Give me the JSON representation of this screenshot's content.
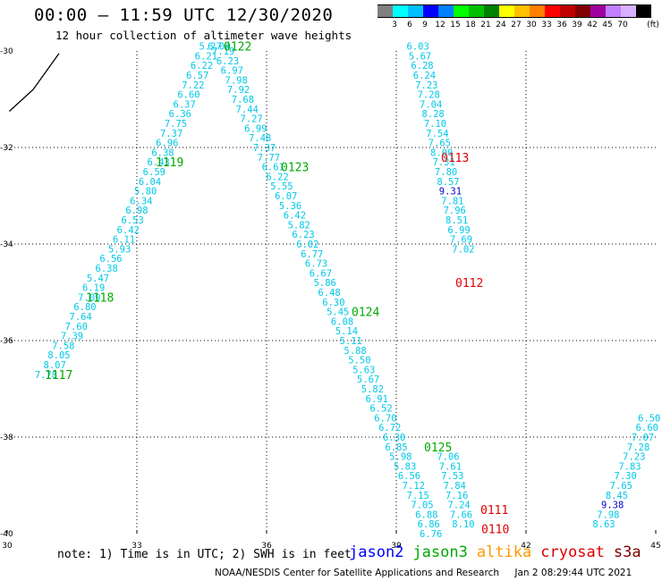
{
  "header": {
    "title": "00:00 – 11:59 UTC 12/30/2020",
    "subtitle": "12 hour collection of altimeter wave heights"
  },
  "colorbar": {
    "unit": "(ft)",
    "colors": [
      "#808080",
      "#00ffff",
      "#00bfff",
      "#0000ff",
      "#0080ff",
      "#00ff00",
      "#00c000",
      "#008000",
      "#ffff00",
      "#ffc000",
      "#ff8000",
      "#ff0000",
      "#c00000",
      "#800000",
      "#a000a0",
      "#c080ff",
      "#d8b0ff",
      "#000000"
    ],
    "labels": [
      "3",
      "6",
      "9",
      "12",
      "15",
      "18",
      "21",
      "24",
      "27",
      "30",
      "33",
      "36",
      "39",
      "42",
      "45",
      "70"
    ]
  },
  "map": {
    "x_ticks": [
      "30",
      "33",
      "36",
      "39",
      "42",
      "45"
    ],
    "y_ticks": [
      "-30",
      "-32",
      "-34",
      "-36",
      "-38",
      "-40"
    ]
  },
  "tracks": [
    {
      "mission": "jason3",
      "color": "#00aa00",
      "label": "1117",
      "label_pos": [
        50,
        -36.7
      ],
      "points": [
        [
          7.78,
          30.9,
          -36.7
        ],
        [
          8.07,
          31.1,
          -36.5
        ],
        [
          8.05,
          31.2,
          -36.3
        ],
        [
          7.58,
          31.3,
          -36.1
        ],
        [
          7.39,
          31.5,
          -35.9
        ],
        [
          7.6,
          31.6,
          -35.7
        ],
        [
          7.64,
          31.7,
          -35.5
        ],
        [
          6.8,
          31.8,
          -35.3
        ],
        [
          7.09,
          31.9,
          -35.1
        ],
        [
          6.19,
          32.0,
          -34.9
        ],
        [
          5.47,
          32.1,
          -34.7
        ],
        [
          6.38,
          32.3,
          -34.5
        ],
        [
          6.56,
          32.4,
          -34.3
        ],
        [
          5.93,
          32.6,
          -34.1
        ],
        [
          6.11,
          32.7,
          -33.9
        ],
        [
          6.42,
          32.8,
          -33.7
        ],
        [
          6.53,
          32.9,
          -33.5
        ],
        [
          6.98,
          33.0,
          -33.3
        ],
        [
          6.34,
          33.1,
          -33.1
        ],
        [
          5.8,
          33.2,
          -32.9
        ],
        [
          6.04,
          33.3,
          -32.7
        ],
        [
          6.59,
          33.4,
          -32.5
        ],
        [
          6.43,
          33.5,
          -32.3
        ],
        [
          6.38,
          33.6,
          -32.1
        ],
        [
          6.96,
          33.7,
          -31.9
        ],
        [
          7.37,
          33.8,
          -31.7
        ],
        [
          7.75,
          33.9,
          -31.5
        ],
        [
          6.36,
          34.0,
          -31.3
        ],
        [
          6.37,
          34.1,
          -31.1
        ],
        [
          6.6,
          34.2,
          -30.9
        ],
        [
          7.22,
          34.3,
          -30.7
        ],
        [
          6.57,
          34.4,
          -30.5
        ],
        [
          6.22,
          34.5,
          -30.3
        ],
        [
          6.21,
          34.6,
          -30.1
        ],
        [
          5.27,
          34.7,
          -29.9
        ],
        [
          5.8,
          34.8,
          -29.7
        ]
      ]
    },
    {
      "mission": "jason3",
      "color": "#00aa00",
      "label": "1118",
      "label_pos": [
        96,
        -35.1
      ],
      "points": []
    },
    {
      "mission": "jason3",
      "color": "#00aa00",
      "label": "1119",
      "label_pos": [
        174,
        -32.3
      ],
      "points": []
    },
    {
      "mission": "jason3",
      "color": "#00aa00",
      "label": "0122",
      "label_pos": [
        250,
        -29.9
      ],
      "points": [
        [
          6.04,
          34.9,
          -29.9
        ],
        [
          7.19,
          35.0,
          -30.0
        ],
        [
          6.23,
          35.1,
          -30.2
        ],
        [
          6.97,
          35.2,
          -30.4
        ],
        [
          7.98,
          35.3,
          -30.6
        ],
        [
          7.92,
          35.35,
          -30.8
        ],
        [
          7.68,
          35.45,
          -31.0
        ],
        [
          7.44,
          35.55,
          -31.2
        ],
        [
          7.27,
          35.65,
          -31.4
        ],
        [
          6.99,
          35.75,
          -31.6
        ],
        [
          7.48,
          35.85,
          -31.8
        ],
        [
          7.37,
          35.95,
          -32.0
        ],
        [
          7.77,
          36.05,
          -32.2
        ],
        [
          6.61,
          36.15,
          -32.4
        ],
        [
          6.22,
          36.25,
          -32.6
        ],
        [
          5.55,
          36.35,
          -32.8
        ],
        [
          6.07,
          36.45,
          -33.0
        ]
      ]
    },
    {
      "mission": "jason3",
      "color": "#00aa00",
      "label": "0123",
      "label_pos": [
        314,
        -32.4
      ],
      "points": [
        [
          5.36,
          36.55,
          -33.2
        ],
        [
          6.42,
          36.65,
          -33.4
        ],
        [
          5.82,
          36.75,
          -33.6
        ],
        [
          6.23,
          36.85,
          -33.8
        ],
        [
          6.02,
          36.95,
          -34.0
        ],
        [
          6.77,
          37.05,
          -34.2
        ],
        [
          6.73,
          37.15,
          -34.4
        ],
        [
          6.67,
          37.25,
          -34.6
        ],
        [
          5.86,
          37.35,
          -34.8
        ],
        [
          6.48,
          37.45,
          -35.0
        ],
        [
          6.3,
          37.55,
          -35.2
        ],
        [
          5.45,
          37.65,
          -35.4
        ],
        [
          6.08,
          37.75,
          -35.6
        ],
        [
          5.14,
          37.85,
          -35.8
        ],
        [
          5.11,
          37.95,
          -36.0
        ]
      ]
    },
    {
      "mission": "jason3",
      "color": "#00aa00",
      "label": "0124",
      "label_pos": [
        393,
        -35.4
      ],
      "points": [
        [
          5.88,
          38.05,
          -36.2
        ],
        [
          5.5,
          38.15,
          -36.4
        ],
        [
          5.63,
          38.25,
          -36.6
        ],
        [
          5.67,
          38.35,
          -36.8
        ],
        [
          5.82,
          38.45,
          -37.0
        ],
        [
          6.91,
          38.55,
          -37.2
        ],
        [
          6.52,
          38.65,
          -37.4
        ],
        [
          6.7,
          38.75,
          -37.6
        ],
        [
          6.72,
          38.85,
          -37.8
        ],
        [
          6.3,
          38.95,
          -38.0
        ],
        [
          6.85,
          39.0,
          -38.2
        ]
      ]
    },
    {
      "mission": "jason3",
      "color": "#00aa00",
      "label": "0125",
      "label_pos": [
        474,
        -38.2
      ],
      "points": [
        [
          5.98,
          39.1,
          -38.4
        ],
        [
          5.83,
          39.2,
          -38.6
        ],
        [
          6.56,
          39.3,
          -38.8
        ],
        [
          7.12,
          39.4,
          -39.0
        ],
        [
          7.15,
          39.5,
          -39.2
        ],
        [
          7.05,
          39.6,
          -39.4
        ],
        [
          6.88,
          39.7,
          -39.6
        ],
        [
          6.86,
          39.75,
          -39.8
        ],
        [
          6.76,
          39.8,
          -40.0
        ]
      ]
    },
    {
      "mission": "cryosat",
      "color": "#dd0000",
      "label": "0113",
      "label_pos": [
        493,
        -32.2
      ],
      "points": [
        [
          6.03,
          39.5,
          -29.9
        ],
        [
          5.67,
          39.55,
          -30.1
        ],
        [
          6.28,
          39.6,
          -30.3
        ],
        [
          6.24,
          39.65,
          -30.5
        ],
        [
          7.23,
          39.7,
          -30.7
        ],
        [
          7.28,
          39.75,
          -30.9
        ],
        [
          7.04,
          39.8,
          -31.1
        ],
        [
          8.28,
          39.85,
          -31.3
        ],
        [
          7.1,
          39.9,
          -31.5
        ],
        [
          7.54,
          39.95,
          -31.7
        ],
        [
          7.65,
          40.0,
          -31.9
        ],
        [
          8.0,
          40.05,
          -32.1
        ],
        [
          7.31,
          40.1,
          -32.3
        ],
        [
          7.8,
          40.15,
          -32.5
        ],
        [
          8.57,
          40.2,
          -32.7
        ],
        [
          9.31,
          40.25,
          -32.9
        ],
        [
          7.81,
          40.3,
          -33.1
        ],
        [
          7.96,
          40.35,
          -33.3
        ],
        [
          8.51,
          40.4,
          -33.5
        ],
        [
          6.99,
          40.45,
          -33.7
        ],
        [
          7.69,
          40.5,
          -33.9
        ],
        [
          7.02,
          40.55,
          -34.1
        ]
      ]
    },
    {
      "mission": "cryosat",
      "color": "#dd0000",
      "label": "0112",
      "label_pos": [
        509,
        -34.8
      ],
      "points": []
    },
    {
      "mission": "cryosat",
      "color": "#dd0000",
      "label": "0111",
      "label_pos": [
        537,
        -39.5
      ],
      "points": [
        [
          7.06,
          40.2,
          -38.4
        ],
        [
          7.61,
          40.25,
          -38.6
        ],
        [
          7.53,
          40.3,
          -38.8
        ],
        [
          7.84,
          40.35,
          -39.0
        ],
        [
          7.16,
          40.4,
          -39.2
        ],
        [
          7.24,
          40.45,
          -39.4
        ],
        [
          7.66,
          40.5,
          -39.6
        ],
        [
          8.1,
          40.55,
          -39.8
        ]
      ]
    },
    {
      "mission": "cryosat",
      "color": "#dd0000",
      "label": "0110",
      "label_pos": [
        538,
        -39.9
      ],
      "points": []
    },
    {
      "mission": "jason3",
      "color": "#00aa00",
      "label": "",
      "label_pos": [
        0,
        0
      ],
      "points": [
        [
          8.63,
          43.8,
          -39.8
        ],
        [
          7.98,
          43.9,
          -39.6
        ],
        [
          9.38,
          44.0,
          -39.4
        ],
        [
          8.45,
          44.1,
          -39.2
        ],
        [
          7.65,
          44.2,
          -39.0
        ],
        [
          7.3,
          44.3,
          -38.8
        ],
        [
          7.83,
          44.4,
          -38.6
        ],
        [
          7.23,
          44.5,
          -38.4
        ],
        [
          7.28,
          44.6,
          -38.2
        ],
        [
          7.07,
          44.7,
          -38.0
        ],
        [
          6.6,
          44.8,
          -37.8
        ],
        [
          6.5,
          44.85,
          -37.6
        ]
      ]
    }
  ],
  "footer": {
    "note": "note: 1) Time is in UTC; 2) SWH is in feet",
    "missions": [
      {
        "name": "jason2",
        "color": "#0000ff"
      },
      {
        "name": "jason3",
        "color": "#00aa00"
      },
      {
        "name": "altika",
        "color": "#ff9900"
      },
      {
        "name": "cryosat",
        "color": "#dd0000"
      },
      {
        "name": "s3a",
        "color": "#800000"
      }
    ],
    "credit": "NOAA/NESDIS Center for Satellite Applications and Research",
    "timestamp": "Jan  2 08:29:44 UTC 2021"
  }
}
